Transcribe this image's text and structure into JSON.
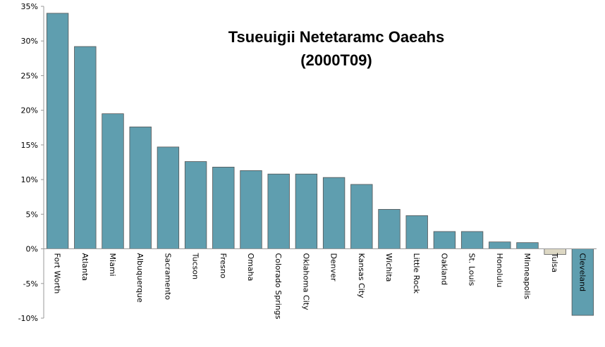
{
  "chart_data": {
    "type": "bar",
    "title": "Tsueuigii Netetaramc Oaeahs",
    "subtitle": "(2000T09)",
    "xlabel": "",
    "ylabel": "",
    "ylim": [
      -10,
      35
    ],
    "yticks": [
      "-10%",
      "-5%",
      "0%",
      "5%",
      "10%",
      "15%",
      "20%",
      "25%",
      "30%",
      "35%"
    ],
    "grid": false,
    "categories": [
      "Fort Worth",
      "Atlanta",
      "Miami",
      "Albuquerque",
      "Sacramento",
      "Tucson",
      "Fresno",
      "Omaha",
      "Colorado Springs",
      "Oklahoma City",
      "Denver",
      "Kansas City",
      "Wichita",
      "Little Rock",
      "Oakland",
      "St. Louis",
      "Honolulu",
      "Minneapolis",
      "Tulsa",
      "Cleveland"
    ],
    "values": [
      34.0,
      29.2,
      19.5,
      17.6,
      14.7,
      12.6,
      11.8,
      11.3,
      10.8,
      10.8,
      10.3,
      9.3,
      5.7,
      4.8,
      2.5,
      2.5,
      1.0,
      0.9,
      -0.8,
      -9.6
    ],
    "colors": {
      "positive": "#5f9eaf",
      "tulsa": "#ddd8c4",
      "cleveland": "#5f9eaf",
      "axis": "#999999"
    }
  }
}
